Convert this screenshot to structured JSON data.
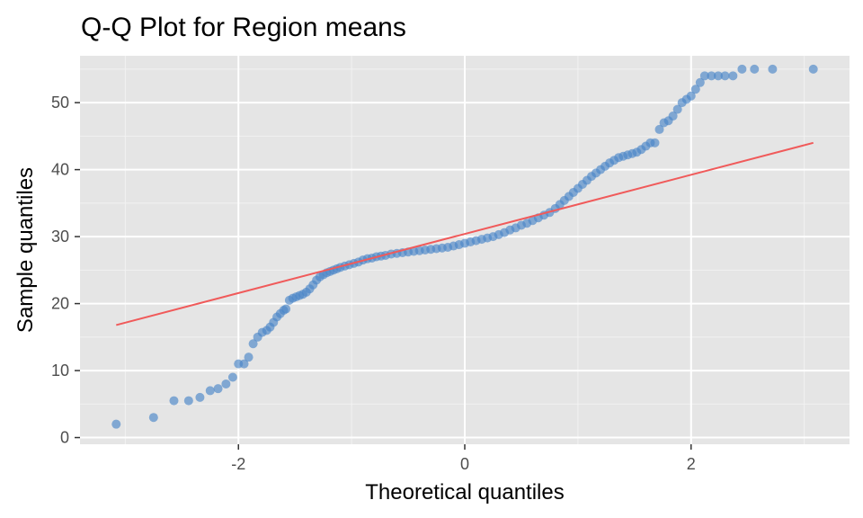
{
  "chart_data": {
    "type": "scatter",
    "title": "Q-Q Plot for Region means",
    "xlabel": "Theoretical quantiles",
    "ylabel": "Sample quantiles",
    "xlim": [
      -3.4,
      3.4
    ],
    "ylim": [
      -1.0,
      57.0
    ],
    "x_ticks": [
      -2,
      0,
      2
    ],
    "x_tick_labels": [
      "-2",
      "0",
      "2"
    ],
    "y_ticks": [
      0,
      10,
      20,
      30,
      40,
      50
    ],
    "y_tick_labels": [
      "0",
      "10",
      "20",
      "30",
      "40",
      "50"
    ],
    "grid": true,
    "background": "#e5e5e5",
    "point_color": "#4a86c8",
    "line_color": "#f05a5a",
    "reference_line": {
      "x": [
        -3.08,
        3.08
      ],
      "y": [
        16.8,
        44.0
      ]
    },
    "points": [
      [
        -3.08,
        2.0
      ],
      [
        -2.75,
        3.0
      ],
      [
        -2.57,
        5.5
      ],
      [
        -2.44,
        5.5
      ],
      [
        -2.34,
        6.0
      ],
      [
        -2.25,
        7.0
      ],
      [
        -2.18,
        7.3
      ],
      [
        -2.11,
        8.0
      ],
      [
        -2.05,
        9.0
      ],
      [
        -2.0,
        11.0
      ],
      [
        -1.95,
        11.0
      ],
      [
        -1.91,
        12.0
      ],
      [
        -1.87,
        14.0
      ],
      [
        -1.83,
        15.0
      ],
      [
        -1.79,
        15.7
      ],
      [
        -1.75,
        16.0
      ],
      [
        -1.72,
        16.5
      ],
      [
        -1.69,
        17.2
      ],
      [
        -1.66,
        18.0
      ],
      [
        -1.63,
        18.5
      ],
      [
        -1.6,
        19.0
      ],
      [
        -1.58,
        19.2
      ],
      [
        -1.55,
        20.5
      ],
      [
        -1.52,
        20.8
      ],
      [
        -1.49,
        21.0
      ],
      [
        -1.46,
        21.2
      ],
      [
        -1.43,
        21.4
      ],
      [
        -1.4,
        21.7
      ],
      [
        -1.37,
        22.2
      ],
      [
        -1.34,
        22.8
      ],
      [
        -1.31,
        23.5
      ],
      [
        -1.28,
        24.0
      ],
      [
        -1.25,
        24.3
      ],
      [
        -1.22,
        24.6
      ],
      [
        -1.19,
        24.8
      ],
      [
        -1.16,
        25.0
      ],
      [
        -1.13,
        25.2
      ],
      [
        -1.1,
        25.4
      ],
      [
        -1.06,
        25.6
      ],
      [
        -1.02,
        25.8
      ],
      [
        -0.98,
        26.0
      ],
      [
        -0.94,
        26.2
      ],
      [
        -0.9,
        26.5
      ],
      [
        -0.86,
        26.7
      ],
      [
        -0.82,
        26.8
      ],
      [
        -0.78,
        27.0
      ],
      [
        -0.74,
        27.1
      ],
      [
        -0.7,
        27.2
      ],
      [
        -0.65,
        27.4
      ],
      [
        -0.6,
        27.5
      ],
      [
        -0.55,
        27.6
      ],
      [
        -0.5,
        27.7
      ],
      [
        -0.45,
        27.8
      ],
      [
        -0.4,
        27.9
      ],
      [
        -0.35,
        28.0
      ],
      [
        -0.3,
        28.1
      ],
      [
        -0.25,
        28.2
      ],
      [
        -0.2,
        28.3
      ],
      [
        -0.15,
        28.4
      ],
      [
        -0.1,
        28.6
      ],
      [
        -0.05,
        28.8
      ],
      [
        0.0,
        29.0
      ],
      [
        0.05,
        29.2
      ],
      [
        0.1,
        29.4
      ],
      [
        0.15,
        29.6
      ],
      [
        0.2,
        29.8
      ],
      [
        0.25,
        30.0
      ],
      [
        0.3,
        30.3
      ],
      [
        0.35,
        30.6
      ],
      [
        0.4,
        31.0
      ],
      [
        0.45,
        31.3
      ],
      [
        0.5,
        31.7
      ],
      [
        0.55,
        32.0
      ],
      [
        0.6,
        32.4
      ],
      [
        0.65,
        32.8
      ],
      [
        0.7,
        33.2
      ],
      [
        0.75,
        33.6
      ],
      [
        0.8,
        34.2
      ],
      [
        0.84,
        34.8
      ],
      [
        0.88,
        35.4
      ],
      [
        0.92,
        36.0
      ],
      [
        0.96,
        36.6
      ],
      [
        1.0,
        37.2
      ],
      [
        1.04,
        37.8
      ],
      [
        1.08,
        38.4
      ],
      [
        1.12,
        39.0
      ],
      [
        1.16,
        39.5
      ],
      [
        1.2,
        40.0
      ],
      [
        1.24,
        40.5
      ],
      [
        1.28,
        41.0
      ],
      [
        1.32,
        41.4
      ],
      [
        1.36,
        41.8
      ],
      [
        1.4,
        42.0
      ],
      [
        1.44,
        42.2
      ],
      [
        1.48,
        42.4
      ],
      [
        1.52,
        42.6
      ],
      [
        1.56,
        43.0
      ],
      [
        1.6,
        43.5
      ],
      [
        1.64,
        44.0
      ],
      [
        1.68,
        44.0
      ],
      [
        1.72,
        46.0
      ],
      [
        1.76,
        47.0
      ],
      [
        1.8,
        47.3
      ],
      [
        1.84,
        48.0
      ],
      [
        1.88,
        49.0
      ],
      [
        1.92,
        50.0
      ],
      [
        1.96,
        50.5
      ],
      [
        2.0,
        51.0
      ],
      [
        2.04,
        52.0
      ],
      [
        2.08,
        53.0
      ],
      [
        2.12,
        54.0
      ],
      [
        2.18,
        54.0
      ],
      [
        2.24,
        54.0
      ],
      [
        2.3,
        54.0
      ],
      [
        2.37,
        54.0
      ],
      [
        2.45,
        55.0
      ],
      [
        2.56,
        55.0
      ],
      [
        2.72,
        55.0
      ],
      [
        3.08,
        55.0
      ]
    ]
  }
}
